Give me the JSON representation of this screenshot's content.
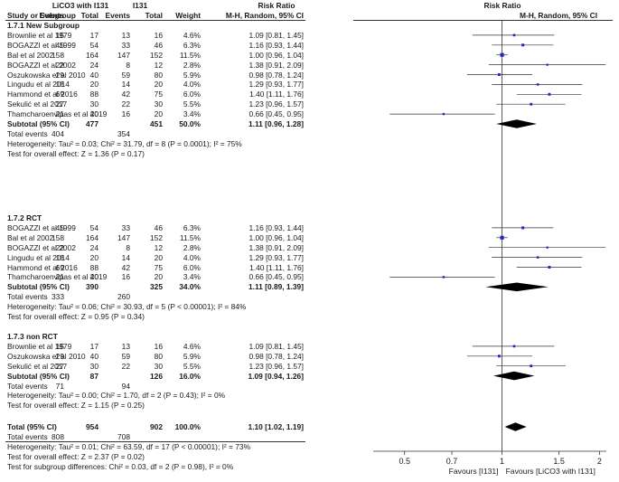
{
  "header": {
    "study_col": "Study or Subgroup",
    "exp_group": "LiCO3 with I131",
    "ctl_group": "I131",
    "events_label": "Events",
    "total_label": "Total",
    "weight_label": "Weight",
    "rr_label": "Risk Ratio",
    "rr_method": "M-H, Random, 95% CI",
    "plot_rr_label": "Risk Ratio",
    "plot_rr_method": "M-H, Random, 95% CI"
  },
  "subgroups": [
    {
      "title": "1.7.1 New Subgroup",
      "studies": [
        {
          "name": "Brownlie et al 1979",
          "e1": "15",
          "t1": "17",
          "e2": "13",
          "t2": "16",
          "weight": "4.6%",
          "ci": "1.09 [0.81, 1.45]"
        },
        {
          "name": "BOGAZZI et al 1999",
          "e1": "45",
          "t1": "54",
          "e2": "33",
          "t2": "46",
          "weight": "6.3%",
          "ci": "1.16 [0.93, 1.44]"
        },
        {
          "name": "Bal et al 2002",
          "e1": "158",
          "t1": "164",
          "e2": "147",
          "t2": "152",
          "weight": "11.5%",
          "ci": "1.00 [0.96, 1.04]"
        },
        {
          "name": "BOGAZZI et al 2002",
          "e1": "22",
          "t1": "24",
          "e2": "8",
          "t2": "12",
          "weight": "2.8%",
          "ci": "1.38 [0.91, 2.09]"
        },
        {
          "name": "Oszukowska et al 2010",
          "e1": "29",
          "t1": "40",
          "e2": "59",
          "t2": "80",
          "weight": "5.9%",
          "ci": "0.98 [0.78, 1.24]"
        },
        {
          "name": "Lingudu et al 2014",
          "e1": "18",
          "t1": "20",
          "e2": "14",
          "t2": "20",
          "weight": "4.0%",
          "ci": "1.29 [0.93, 1.77]"
        },
        {
          "name": "Hammond et al 2016",
          "e1": "69",
          "t1": "88",
          "e2": "42",
          "t2": "75",
          "weight": "6.0%",
          "ci": "1.40 [1.11, 1.76]"
        },
        {
          "name": "Sekulić et al 2017",
          "e1": "27",
          "t1": "30",
          "e2": "22",
          "t2": "30",
          "weight": "5.5%",
          "ci": "1.23 [0.96, 1.57]"
        },
        {
          "name": "Thamcharoenvipas et al 2019",
          "e1": "21",
          "t1": "40",
          "e2": "16",
          "t2": "20",
          "weight": "3.4%",
          "ci": "0.66 [0.45, 0.95]"
        }
      ],
      "subtotal": {
        "label": "Subtotal (95% CI)",
        "t1": "477",
        "t2": "451",
        "weight": "50.0%",
        "ci": "1.11 [0.96, 1.28]"
      },
      "total_events": {
        "label": "Total events",
        "e1": "404",
        "e2": "354"
      },
      "heterogeneity": "Heterogeneity: Tau² = 0.03; Chi² = 31.79, df = 8 (P = 0.0001); I² = 75%",
      "overall_effect": "Test for overall effect: Z = 1.36 (P = 0.17)"
    },
    {
      "title": "1.7.2 RCT",
      "studies": [
        {
          "name": "BOGAZZI et al 1999",
          "e1": "45",
          "t1": "54",
          "e2": "33",
          "t2": "46",
          "weight": "6.3%",
          "ci": "1.16 [0.93, 1.44]"
        },
        {
          "name": "Bal et al 2002",
          "e1": "158",
          "t1": "164",
          "e2": "147",
          "t2": "152",
          "weight": "11.5%",
          "ci": "1.00 [0.96, 1.04]"
        },
        {
          "name": "BOGAZZI et al 2002",
          "e1": "22",
          "t1": "24",
          "e2": "8",
          "t2": "12",
          "weight": "2.8%",
          "ci": "1.38 [0.91, 2.09]"
        },
        {
          "name": "Lingudu et al 2014",
          "e1": "18",
          "t1": "20",
          "e2": "14",
          "t2": "20",
          "weight": "4.0%",
          "ci": "1.29 [0.93, 1.77]"
        },
        {
          "name": "Hammond et al 2016",
          "e1": "69",
          "t1": "88",
          "e2": "42",
          "t2": "75",
          "weight": "6.0%",
          "ci": "1.40 [1.11, 1.76]"
        },
        {
          "name": "Thamcharoenvipas et al 2019",
          "e1": "21",
          "t1": "40",
          "e2": "16",
          "t2": "20",
          "weight": "3.4%",
          "ci": "0.66 [0.45, 0.95]"
        }
      ],
      "subtotal": {
        "label": "Subtotal (95% CI)",
        "t1": "390",
        "t2": "325",
        "weight": "34.0%",
        "ci": "1.11 [0.89, 1.39]"
      },
      "total_events": {
        "label": "Total events",
        "e1": "333",
        "e2": "260"
      },
      "heterogeneity": "Heterogeneity: Tau² = 0.06; Chi² = 30.93, df = 5 (P < 0.00001); I² = 84%",
      "overall_effect": "Test for overall effect: Z = 0.95 (P = 0.34)"
    },
    {
      "title": "1.7.3 non RCT",
      "studies": [
        {
          "name": "Brownlie et al 1979",
          "e1": "15",
          "t1": "17",
          "e2": "13",
          "t2": "16",
          "weight": "4.6%",
          "ci": "1.09 [0.81, 1.45]"
        },
        {
          "name": "Oszukowska et al 2010",
          "e1": "29",
          "t1": "40",
          "e2": "59",
          "t2": "80",
          "weight": "5.9%",
          "ci": "0.98 [0.78, 1.24]"
        },
        {
          "name": "Sekulić et al 2017",
          "e1": "27",
          "t1": "30",
          "e2": "22",
          "t2": "30",
          "weight": "5.5%",
          "ci": "1.23 [0.96, 1.57]"
        }
      ],
      "subtotal": {
        "label": "Subtotal (95% CI)",
        "t1": "87",
        "t2": "126",
        "weight": "16.0%",
        "ci": "1.09 [0.94, 1.26]"
      },
      "total_events": {
        "label": "Total events",
        "e1": "71",
        "e2": "94"
      },
      "heterogeneity": "Heterogeneity: Tau² = 0.00; Chi² = 1.70, df = 2 (P = 0.43); I² = 0%",
      "overall_effect": "Test for overall effect: Z = 1.15 (P = 0.25)"
    }
  ],
  "overall": {
    "label": "Total (95% CI)",
    "t1": "954",
    "t2": "902",
    "weight": "100.0%",
    "ci": "1.10 [1.02, 1.19]",
    "total_events": {
      "label": "Total events",
      "e1": "808",
      "e2": "708"
    },
    "heterogeneity": "Heterogeneity: Tau² = 0.01; Chi² = 63.59, df = 17 (P < 0.00001); I² = 73%",
    "overall_effect": "Test for overall effect: Z = 2.37 (P = 0.02)",
    "subgroup_diff": "Test for subgroup differences: Chi² = 0.03, df = 2 (P = 0.98), I² = 0%"
  },
  "chart_data": {
    "type": "forest",
    "title": "Risk Ratio",
    "subtitle": "M-H, Random, 95% CI",
    "xlim": [
      0.4,
      2.1
    ],
    "xticks": [
      {
        "v": 0.5,
        "label": "0.5"
      },
      {
        "v": 0.7,
        "label": "0.7"
      },
      {
        "v": 1,
        "label": "1"
      },
      {
        "v": 1.5,
        "label": "1.5"
      },
      {
        "v": 2,
        "label": "2"
      }
    ],
    "xlabel_left": "Favours [I131]",
    "xlabel_right": "Favours [LiCO3 with I131]",
    "studies": [
      {
        "group": 0,
        "rr": 1.09,
        "lo": 0.81,
        "hi": 1.45,
        "weight": 4.6
      },
      {
        "group": 0,
        "rr": 1.16,
        "lo": 0.93,
        "hi": 1.44,
        "weight": 6.3
      },
      {
        "group": 0,
        "rr": 1.0,
        "lo": 0.96,
        "hi": 1.04,
        "weight": 11.5
      },
      {
        "group": 0,
        "rr": 1.38,
        "lo": 0.91,
        "hi": 2.09,
        "weight": 2.8
      },
      {
        "group": 0,
        "rr": 0.98,
        "lo": 0.78,
        "hi": 1.24,
        "weight": 5.9
      },
      {
        "group": 0,
        "rr": 1.29,
        "lo": 0.93,
        "hi": 1.77,
        "weight": 4.0
      },
      {
        "group": 0,
        "rr": 1.4,
        "lo": 1.11,
        "hi": 1.76,
        "weight": 6.0
      },
      {
        "group": 0,
        "rr": 1.23,
        "lo": 0.96,
        "hi": 1.57,
        "weight": 5.5
      },
      {
        "group": 0,
        "rr": 0.66,
        "lo": 0.45,
        "hi": 0.95,
        "weight": 3.4
      },
      {
        "group": 1,
        "rr": 1.16,
        "lo": 0.93,
        "hi": 1.44,
        "weight": 6.3
      },
      {
        "group": 1,
        "rr": 1.0,
        "lo": 0.96,
        "hi": 1.04,
        "weight": 11.5
      },
      {
        "group": 1,
        "rr": 1.38,
        "lo": 0.91,
        "hi": 2.09,
        "weight": 2.8
      },
      {
        "group": 1,
        "rr": 1.29,
        "lo": 0.93,
        "hi": 1.77,
        "weight": 4.0
      },
      {
        "group": 1,
        "rr": 1.4,
        "lo": 1.11,
        "hi": 1.76,
        "weight": 6.0
      },
      {
        "group": 1,
        "rr": 0.66,
        "lo": 0.45,
        "hi": 0.95,
        "weight": 3.4
      },
      {
        "group": 2,
        "rr": 1.09,
        "lo": 0.81,
        "hi": 1.45,
        "weight": 4.6
      },
      {
        "group": 2,
        "rr": 0.98,
        "lo": 0.78,
        "hi": 1.24,
        "weight": 5.9
      },
      {
        "group": 2,
        "rr": 1.23,
        "lo": 0.96,
        "hi": 1.57,
        "weight": 5.5
      }
    ],
    "diamonds": [
      {
        "label": "Subtotal 1.7.1",
        "rr": 1.11,
        "lo": 0.96,
        "hi": 1.28
      },
      {
        "label": "Subtotal 1.7.2",
        "rr": 1.11,
        "lo": 0.89,
        "hi": 1.39
      },
      {
        "label": "Subtotal 1.7.3",
        "rr": 1.09,
        "lo": 0.94,
        "hi": 1.26
      },
      {
        "label": "Total",
        "rr": 1.1,
        "lo": 1.02,
        "hi": 1.19
      }
    ],
    "colors": {
      "square": "#2222cc",
      "diamond": "#000000",
      "line": "#333333"
    }
  }
}
